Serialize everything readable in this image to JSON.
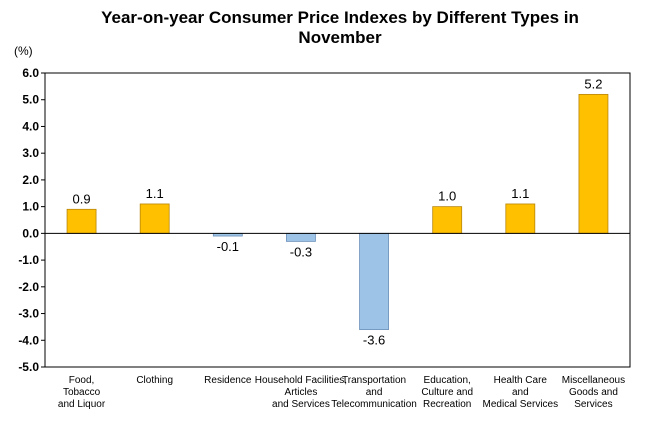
{
  "chart_data": {
    "type": "bar",
    "title": "Year-on-year Consumer Price Indexes by Different Types in November",
    "unit": "(%)",
    "ylim": [
      -5.0,
      6.0
    ],
    "y_ticks": [
      "6.0",
      "5.0",
      "4.0",
      "3.0",
      "2.0",
      "1.0",
      "0.0",
      "-1.0",
      "-2.0",
      "-3.0",
      "-4.0",
      "-5.0"
    ],
    "grid": false,
    "legend": "none",
    "categories": [
      "Food, Tobacco and Liquor",
      "Clothing",
      "Residence",
      "Household Facilities, Articles and Services",
      "Transportation and Telecommunication",
      "Education, Culture and Recreation",
      "Health Care and Medical Services",
      "Miscellaneous Goods and Services"
    ],
    "category_lines": [
      [
        "Food,",
        "Tobacco",
        "and Liquor"
      ],
      [
        "Clothing"
      ],
      [
        "Residence"
      ],
      [
        "Household Facilities,",
        "Articles",
        "and Services"
      ],
      [
        "Transportation",
        "and",
        "Telecommunication"
      ],
      [
        "Education,",
        "Culture and",
        "Recreation"
      ],
      [
        "Health Care",
        "and",
        "Medical Services"
      ],
      [
        "Miscellaneous",
        "Goods and",
        "Services"
      ]
    ],
    "values": [
      0.9,
      1.1,
      -0.1,
      -0.3,
      -3.6,
      1.0,
      1.1,
      5.2
    ],
    "value_labels": [
      "0.9",
      "1.1",
      "-0.1",
      "-0.3",
      "-3.6",
      "1.0",
      "1.1",
      "5.2"
    ],
    "colors": {
      "positive": "#FFC000",
      "positive_border": "#B8860B",
      "negative": "#9DC3E6",
      "negative_border": "#6A8FB8",
      "axis": "#000000"
    }
  }
}
